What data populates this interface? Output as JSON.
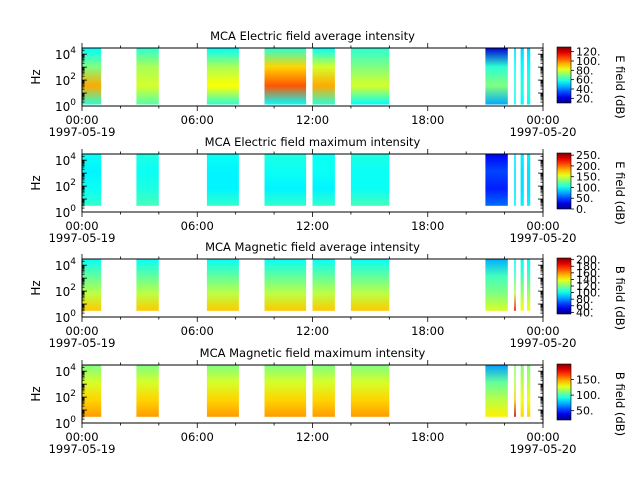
{
  "figure": {
    "background": "#ffffff"
  },
  "chart_data": [
    {
      "type": "heatmap",
      "title": "MCA  Electric field average intensity",
      "ylabel": "Hz",
      "yscale": "log",
      "ylim": [
        1,
        30000
      ],
      "y_ticks": [
        {
          "exp": "0",
          "value": 1
        },
        {
          "exp": "2",
          "value": 100
        },
        {
          "exp": "4",
          "value": 10000
        }
      ],
      "xlim": [
        "1997-05-19 00:00",
        "1997-05-20 00:00"
      ],
      "x_ticks": [
        {
          "time": "1997-05-19 00:00",
          "label": "00:00",
          "date": "1997-05-19"
        },
        {
          "time": "1997-05-19 06:00",
          "label": "06:00",
          "date": ""
        },
        {
          "time": "1997-05-19 12:00",
          "label": "12:00",
          "date": ""
        },
        {
          "time": "1997-05-19 18:00",
          "label": "18:00",
          "date": ""
        },
        {
          "time": "1997-05-20 00:00",
          "label": "00:00",
          "date": "1997-05-20"
        }
      ],
      "colorbar": {
        "label": "E field (dB)",
        "range": [
          10,
          130
        ],
        "ticks": [
          {
            "value": 20,
            "label": "20."
          },
          {
            "value": 40,
            "label": "40."
          },
          {
            "value": 60,
            "label": "60."
          },
          {
            "value": 80,
            "label": "80."
          },
          {
            "value": 100,
            "label": "100."
          },
          {
            "value": 120,
            "label": "120."
          }
        ]
      },
      "segments": [
        {
          "start": "1997-05-19 00:00",
          "end": "1997-05-19 01:00",
          "f_low": 1.3,
          "f_high": 30000,
          "level": [
            60,
            95,
            70,
            55
          ]
        },
        {
          "start": "1997-05-19 02:50",
          "end": "1997-05-19 04:00",
          "f_low": 1.3,
          "f_high": 30000,
          "level": [
            65,
            80,
            75,
            60
          ]
        },
        {
          "start": "1997-05-19 06:30",
          "end": "1997-05-19 08:10",
          "f_low": 1.3,
          "f_high": 30000,
          "level": [
            60,
            85,
            75,
            55
          ]
        },
        {
          "start": "1997-05-19 09:30",
          "end": "1997-05-19 11:40",
          "f_low": 1.3,
          "f_high": 30000,
          "level": [
            55,
            105,
            90,
            60
          ]
        },
        {
          "start": "1997-05-19 12:00",
          "end": "1997-05-19 13:10",
          "f_low": 1.3,
          "f_high": 30000,
          "level": [
            60,
            95,
            80,
            55
          ]
        },
        {
          "start": "1997-05-19 14:00",
          "end": "1997-05-19 16:00",
          "f_low": 1.3,
          "f_high": 30000,
          "level": [
            55,
            80,
            70,
            60
          ]
        },
        {
          "start": "1997-05-19 21:00",
          "end": "1997-05-19 22:10",
          "f_low": 1.3,
          "f_high": 30000,
          "level": [
            45,
            70,
            60,
            20
          ]
        },
        {
          "start": "1997-05-19 22:30",
          "end": "1997-05-19 22:35",
          "f_low": 1.3,
          "f_high": 30000,
          "level": [
            55,
            60,
            55,
            50
          ]
        },
        {
          "start": "1997-05-19 22:50",
          "end": "1997-05-19 23:00",
          "f_low": 1.3,
          "f_high": 30000,
          "level": [
            55,
            60,
            55,
            50
          ]
        },
        {
          "start": "1997-05-19 23:10",
          "end": "1997-05-19 23:20",
          "f_low": 1.3,
          "f_high": 30000,
          "level": [
            55,
            60,
            55,
            50
          ]
        }
      ]
    },
    {
      "type": "heatmap",
      "title": "MCA  Electric field maximum intensity",
      "ylabel": "Hz",
      "yscale": "log",
      "ylim": [
        1,
        30000
      ],
      "y_ticks": [
        {
          "exp": "0",
          "value": 1
        },
        {
          "exp": "2",
          "value": 100
        },
        {
          "exp": "4",
          "value": 10000
        }
      ],
      "xlim": [
        "1997-05-19 00:00",
        "1997-05-20 00:00"
      ],
      "x_ticks": [
        {
          "time": "1997-05-19 00:00",
          "label": "00:00",
          "date": "1997-05-19"
        },
        {
          "time": "1997-05-19 06:00",
          "label": "06:00",
          "date": ""
        },
        {
          "time": "1997-05-19 12:00",
          "label": "12:00",
          "date": ""
        },
        {
          "time": "1997-05-19 18:00",
          "label": "18:00",
          "date": ""
        },
        {
          "time": "1997-05-20 00:00",
          "label": "00:00",
          "date": "1997-05-20"
        }
      ],
      "colorbar": {
        "label": "E field (dB)",
        "range": [
          0,
          260
        ],
        "ticks": [
          {
            "value": 0,
            "label": "0."
          },
          {
            "value": 50,
            "label": "50."
          },
          {
            "value": 100,
            "label": "100."
          },
          {
            "value": 150,
            "label": "150."
          },
          {
            "value": 200,
            "label": "200."
          },
          {
            "value": 250,
            "label": "250."
          }
        ]
      },
      "segments": [
        {
          "start": "1997-05-19 00:00",
          "end": "1997-05-19 01:00",
          "f_low": 3,
          "f_high": 30000,
          "level": [
            110,
            100,
            95,
            100
          ]
        },
        {
          "start": "1997-05-19 02:50",
          "end": "1997-05-19 04:00",
          "f_low": 3,
          "f_high": 30000,
          "level": [
            115,
            105,
            100,
            105
          ]
        },
        {
          "start": "1997-05-19 06:30",
          "end": "1997-05-19 08:10",
          "f_low": 3,
          "f_high": 30000,
          "level": [
            110,
            95,
            95,
            100
          ]
        },
        {
          "start": "1997-05-19 09:30",
          "end": "1997-05-19 11:40",
          "f_low": 3,
          "f_high": 30000,
          "level": [
            110,
            95,
            100,
            105
          ]
        },
        {
          "start": "1997-05-19 12:00",
          "end": "1997-05-19 13:10",
          "f_low": 3,
          "f_high": 30000,
          "level": [
            110,
            95,
            100,
            100
          ]
        },
        {
          "start": "1997-05-19 14:00",
          "end": "1997-05-19 16:00",
          "f_low": 3,
          "f_high": 30000,
          "level": [
            115,
            100,
            100,
            105
          ]
        },
        {
          "start": "1997-05-19 21:00",
          "end": "1997-05-19 22:10",
          "f_low": 3,
          "f_high": 30000,
          "level": [
            60,
            40,
            50,
            30
          ]
        },
        {
          "start": "1997-05-19 22:30",
          "end": "1997-05-19 22:35",
          "f_low": 3,
          "f_high": 30000,
          "level": [
            95,
            90,
            90,
            95
          ]
        },
        {
          "start": "1997-05-19 22:50",
          "end": "1997-05-19 23:00",
          "f_low": 3,
          "f_high": 30000,
          "level": [
            95,
            90,
            90,
            95
          ]
        },
        {
          "start": "1997-05-19 23:10",
          "end": "1997-05-19 23:20",
          "f_low": 3,
          "f_high": 30000,
          "level": [
            95,
            90,
            90,
            95
          ]
        }
      ]
    },
    {
      "type": "heatmap",
      "title": "MCA  Magnetic field average intensity",
      "ylabel": "Hz",
      "yscale": "log",
      "ylim": [
        1,
        30000
      ],
      "y_ticks": [
        {
          "exp": "0",
          "value": 1
        },
        {
          "exp": "2",
          "value": 100
        },
        {
          "exp": "4",
          "value": 10000
        }
      ],
      "xlim": [
        "1997-05-19 00:00",
        "1997-05-20 00:00"
      ],
      "x_ticks": [
        {
          "time": "1997-05-19 00:00",
          "label": "00:00",
          "date": "1997-05-19"
        },
        {
          "time": "1997-05-19 06:00",
          "label": "06:00",
          "date": ""
        },
        {
          "time": "1997-05-19 12:00",
          "label": "12:00",
          "date": ""
        },
        {
          "time": "1997-05-19 18:00",
          "label": "18:00",
          "date": ""
        },
        {
          "time": "1997-05-20 00:00",
          "label": "00:00",
          "date": "1997-05-20"
        }
      ],
      "colorbar": {
        "label": "B field (dB)",
        "range": [
          35,
          205
        ],
        "ticks": [
          {
            "value": 40,
            "label": "40."
          },
          {
            "value": 60,
            "label": "60."
          },
          {
            "value": 80,
            "label": "80."
          },
          {
            "value": 100,
            "label": "100."
          },
          {
            "value": 120,
            "label": "120."
          },
          {
            "value": 140,
            "label": "140."
          },
          {
            "value": 160,
            "label": "160."
          },
          {
            "value": 180,
            "label": "180."
          },
          {
            "value": 200,
            "label": "200."
          }
        ]
      },
      "segments": [
        {
          "start": "1997-05-19 00:00",
          "end": "1997-05-19 01:00",
          "f_low": 3,
          "f_high": 30000,
          "level": [
            150,
            130,
            115,
            100
          ]
        },
        {
          "start": "1997-05-19 02:50",
          "end": "1997-05-19 04:00",
          "f_low": 3,
          "f_high": 30000,
          "level": [
            150,
            130,
            115,
            100
          ]
        },
        {
          "start": "1997-05-19 06:30",
          "end": "1997-05-19 08:10",
          "f_low": 3,
          "f_high": 30000,
          "level": [
            150,
            130,
            115,
            100
          ]
        },
        {
          "start": "1997-05-19 09:30",
          "end": "1997-05-19 11:40",
          "f_low": 3,
          "f_high": 30000,
          "level": [
            150,
            130,
            115,
            100
          ]
        },
        {
          "start": "1997-05-19 12:00",
          "end": "1997-05-19 13:10",
          "f_low": 3,
          "f_high": 30000,
          "level": [
            150,
            130,
            115,
            100
          ]
        },
        {
          "start": "1997-05-19 14:00",
          "end": "1997-05-19 16:00",
          "f_low": 3,
          "f_high": 30000,
          "level": [
            150,
            130,
            115,
            100
          ]
        },
        {
          "start": "1997-05-19 21:00",
          "end": "1997-05-19 22:10",
          "f_low": 3,
          "f_high": 30000,
          "level": [
            135,
            120,
            110,
            85
          ]
        },
        {
          "start": "1997-05-19 22:30",
          "end": "1997-05-19 22:35",
          "f_low": 3,
          "f_high": 30000,
          "level": [
            185,
            130,
            110,
            100
          ]
        },
        {
          "start": "1997-05-19 22:50",
          "end": "1997-05-19 23:00",
          "f_low": 3,
          "f_high": 30000,
          "level": [
            140,
            125,
            110,
            100
          ]
        },
        {
          "start": "1997-05-19 23:10",
          "end": "1997-05-19 23:20",
          "f_low": 3,
          "f_high": 30000,
          "level": [
            140,
            125,
            110,
            100
          ]
        }
      ]
    },
    {
      "type": "heatmap",
      "title": "MCA  Magnetic field maximum intensity",
      "ylabel": "Hz",
      "yscale": "log",
      "ylim": [
        1,
        30000
      ],
      "y_ticks": [
        {
          "exp": "0",
          "value": 1
        },
        {
          "exp": "2",
          "value": 100
        },
        {
          "exp": "4",
          "value": 10000
        }
      ],
      "xlim": [
        "1997-05-19 00:00",
        "1997-05-20 00:00"
      ],
      "x_ticks": [
        {
          "time": "1997-05-19 00:00",
          "label": "00:00",
          "date": "1997-05-19"
        },
        {
          "time": "1997-05-19 06:00",
          "label": "06:00",
          "date": ""
        },
        {
          "time": "1997-05-19 12:00",
          "label": "12:00",
          "date": ""
        },
        {
          "time": "1997-05-19 18:00",
          "label": "18:00",
          "date": ""
        },
        {
          "time": "1997-05-20 00:00",
          "label": "00:00",
          "date": "1997-05-20"
        }
      ],
      "colorbar": {
        "label": "B field (dB)",
        "range": [
          20,
          200
        ],
        "ticks": [
          {
            "value": 50,
            "label": "50."
          },
          {
            "value": 100,
            "label": "100."
          },
          {
            "value": 150,
            "label": "150."
          }
        ]
      },
      "segments": [
        {
          "start": "1997-05-19 00:00",
          "end": "1997-05-19 01:00",
          "f_low": 3,
          "f_high": 30000,
          "level": [
            150,
            140,
            125,
            110
          ]
        },
        {
          "start": "1997-05-19 02:50",
          "end": "1997-05-19 04:00",
          "f_low": 3,
          "f_high": 30000,
          "level": [
            150,
            140,
            125,
            110
          ]
        },
        {
          "start": "1997-05-19 06:30",
          "end": "1997-05-19 08:10",
          "f_low": 3,
          "f_high": 30000,
          "level": [
            150,
            140,
            125,
            110
          ]
        },
        {
          "start": "1997-05-19 09:30",
          "end": "1997-05-19 11:40",
          "f_low": 3,
          "f_high": 30000,
          "level": [
            150,
            140,
            125,
            110
          ]
        },
        {
          "start": "1997-05-19 12:00",
          "end": "1997-05-19 13:10",
          "f_low": 3,
          "f_high": 30000,
          "level": [
            150,
            140,
            125,
            110
          ]
        },
        {
          "start": "1997-05-19 14:00",
          "end": "1997-05-19 16:00",
          "f_low": 3,
          "f_high": 30000,
          "level": [
            150,
            140,
            125,
            110
          ]
        },
        {
          "start": "1997-05-19 21:00",
          "end": "1997-05-19 22:10",
          "f_low": 3,
          "f_high": 30000,
          "level": [
            135,
            120,
            105,
            70
          ]
        },
        {
          "start": "1997-05-19 22:30",
          "end": "1997-05-19 22:35",
          "f_low": 3,
          "f_high": 30000,
          "level": [
            190,
            140,
            120,
            110
          ]
        },
        {
          "start": "1997-05-19 22:50",
          "end": "1997-05-19 23:00",
          "f_low": 3,
          "f_high": 30000,
          "level": [
            140,
            130,
            120,
            110
          ]
        },
        {
          "start": "1997-05-19 23:10",
          "end": "1997-05-19 23:20",
          "f_low": 3,
          "f_high": 30000,
          "level": [
            140,
            130,
            120,
            110
          ]
        }
      ]
    }
  ]
}
